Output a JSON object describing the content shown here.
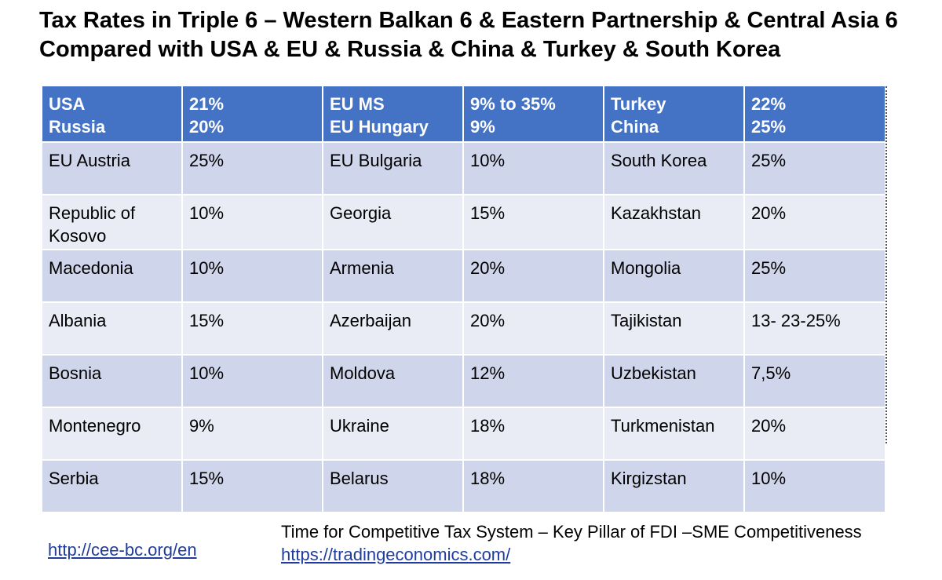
{
  "title": {
    "line1": "Tax Rates in Triple 6 – Western Balkan 6 & Eastern Partnership & Central Asia 6",
    "line2": "Compared with USA & EU & Russia & China & Turkey & South Korea"
  },
  "table": {
    "header": [
      [
        "USA",
        "Russia"
      ],
      [
        "21%",
        "20%"
      ],
      [
        "EU MS",
        "EU Hungary"
      ],
      [
        "9% to 35%",
        "9%"
      ],
      [
        "Turkey",
        "China"
      ],
      [
        "22%",
        "25%"
      ]
    ],
    "rows": [
      [
        [
          "EU Austria"
        ],
        [
          "25%"
        ],
        [
          "EU Bulgaria"
        ],
        [
          "10%"
        ],
        [
          "South Korea"
        ],
        [
          "25%"
        ]
      ],
      [
        [
          "Republic of",
          "Kosovo"
        ],
        [
          "10%"
        ],
        [
          "Georgia"
        ],
        [
          "15%"
        ],
        [
          "Kazakhstan"
        ],
        [
          "20%"
        ]
      ],
      [
        [
          "Macedonia"
        ],
        [
          "10%"
        ],
        [
          "Armenia"
        ],
        [
          "20%"
        ],
        [
          "Mongolia"
        ],
        [
          "25%"
        ]
      ],
      [
        [
          "Albania"
        ],
        [
          "15%"
        ],
        [
          "Azerbaijan"
        ],
        [
          "20%"
        ],
        [
          "Tajikistan"
        ],
        [
          "13- 23-25%"
        ]
      ],
      [
        [
          "Bosnia"
        ],
        [
          "10%"
        ],
        [
          "Moldova"
        ],
        [
          "12%"
        ],
        [
          "Uzbekistan"
        ],
        [
          "7,5%"
        ]
      ],
      [
        [
          "Montenegro"
        ],
        [
          "9%"
        ],
        [
          "Ukraine"
        ],
        [
          "18%"
        ],
        [
          "Turkmenistan"
        ],
        [
          "20%"
        ]
      ],
      [
        [
          "Serbia"
        ],
        [
          "15%"
        ],
        [
          "Belarus"
        ],
        [
          "18%"
        ],
        [
          "Kirgizstan"
        ],
        [
          "10%"
        ]
      ]
    ]
  },
  "footer": {
    "note": "Time for Competitive Tax System – Key Pillar of FDI –SME Competitiveness",
    "link_left": "http://cee-bc.org/en",
    "link_right": "https://tradingeconomics.com/"
  },
  "colors": {
    "header_bg": "#4472c4",
    "row_dark": "#cfd5ea",
    "row_light": "#e9ebf5",
    "link": "#1f3c9e"
  }
}
